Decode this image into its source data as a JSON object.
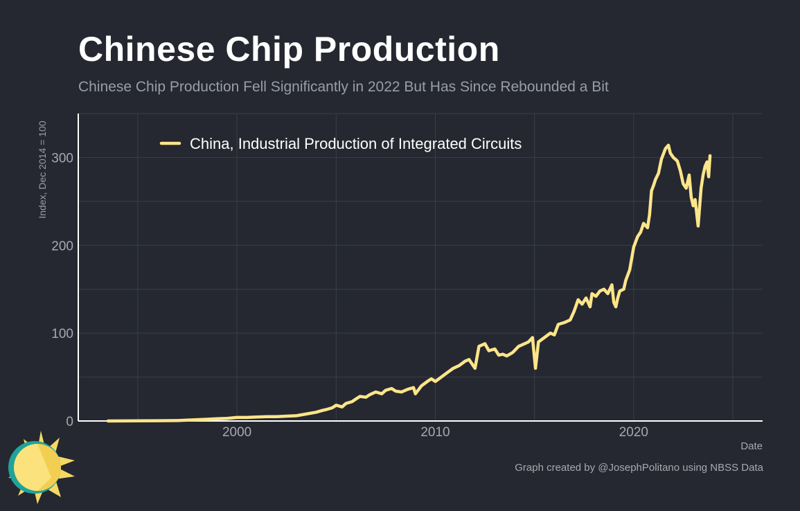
{
  "title": "Chinese Chip Production",
  "subtitle": "Chinese Chip Production Fell Significantly in 2022 But Has Since Rebounded a Bit",
  "caption": "Graph created by @JosephPolitano using NBSS Data",
  "colors": {
    "background": "#252830",
    "line": "#fde58a",
    "grid": "#3a3e47",
    "axis": "#ffffff",
    "text": "#a6a9b0",
    "logo_teal": "#1fa39a"
  },
  "chart_data": {
    "type": "line",
    "xlabel": "Date",
    "ylabel": "Index, Dec 2014 = 100",
    "xlim": [
      1992.0,
      2026.5
    ],
    "ylim": [
      0,
      350
    ],
    "x_ticks": [
      2000,
      2010,
      2020
    ],
    "x_tick_labels": [
      "2000",
      "2010",
      "2020"
    ],
    "y_ticks": [
      0,
      100,
      200,
      300
    ],
    "y_tick_labels": [
      "0",
      "100",
      "200",
      "300"
    ],
    "grid": true,
    "legend_position": "top-left",
    "series": [
      {
        "name": "China, Industrial Production of Integrated Circuits",
        "color": "#fde58a",
        "x": [
          1993.5,
          1995.0,
          1996.0,
          1997.0,
          1997.5,
          1998.0,
          1998.5,
          1999.0,
          1999.5,
          2000.0,
          2000.5,
          2001.0,
          2001.5,
          2002.0,
          2002.5,
          2003.0,
          2003.5,
          2004.0,
          2004.3,
          2004.5,
          2004.8,
          2005.0,
          2005.3,
          2005.5,
          2005.8,
          2006.0,
          2006.2,
          2006.5,
          2006.7,
          2007.0,
          2007.3,
          2007.5,
          2007.8,
          2008.0,
          2008.3,
          2008.6,
          2008.9,
          2009.0,
          2009.3,
          2009.6,
          2009.8,
          2010.0,
          2010.3,
          2010.6,
          2010.9,
          2011.2,
          2011.5,
          2011.7,
          2012.0,
          2012.2,
          2012.5,
          2012.7,
          2013.0,
          2013.2,
          2013.4,
          2013.6,
          2013.9,
          2014.2,
          2014.5,
          2014.7,
          2014.9,
          2015.05,
          2015.2,
          2015.5,
          2015.8,
          2016.0,
          2016.2,
          2016.5,
          2016.8,
          2017.0,
          2017.2,
          2017.4,
          2017.6,
          2017.8,
          2017.9,
          2018.1,
          2018.3,
          2018.5,
          2018.7,
          2018.9,
          2019.0,
          2019.1,
          2019.2,
          2019.3,
          2019.5,
          2019.6,
          2019.8,
          2019.9,
          2020.0,
          2020.2,
          2020.35,
          2020.5,
          2020.7,
          2020.8,
          2020.9,
          2021.0,
          2021.1,
          2021.25,
          2021.4,
          2021.6,
          2021.75,
          2021.85,
          2022.0,
          2022.2,
          2022.35,
          2022.5,
          2022.65,
          2022.8,
          2022.9,
          2023.0,
          2023.1,
          2023.25,
          2023.4,
          2023.5,
          2023.6,
          2023.7,
          2023.78,
          2023.85
        ],
        "values": [
          0,
          0.2,
          0.3,
          0.5,
          1,
          1.5,
          2,
          2.5,
          3,
          4,
          4,
          4.5,
          5,
          5,
          5.5,
          6,
          8,
          10,
          12,
          13,
          15,
          18,
          16,
          20,
          22,
          25,
          28,
          27,
          30,
          33,
          31,
          35,
          37,
          34,
          33,
          36,
          38,
          31,
          40,
          45,
          48,
          45,
          50,
          55,
          60,
          63,
          68,
          70,
          60,
          85,
          88,
          80,
          82,
          75,
          76,
          74,
          78,
          85,
          88,
          90,
          95,
          60,
          90,
          95,
          100,
          98,
          110,
          112,
          115,
          125,
          138,
          133,
          140,
          130,
          145,
          142,
          148,
          150,
          145,
          155,
          135,
          130,
          140,
          148,
          150,
          160,
          172,
          185,
          198,
          210,
          215,
          225,
          220,
          235,
          262,
          268,
          275,
          282,
          298,
          310,
          314,
          305,
          300,
          296,
          285,
          270,
          265,
          280,
          255,
          245,
          252,
          222,
          265,
          280,
          290,
          295,
          278,
          302
        ]
      }
    ]
  }
}
